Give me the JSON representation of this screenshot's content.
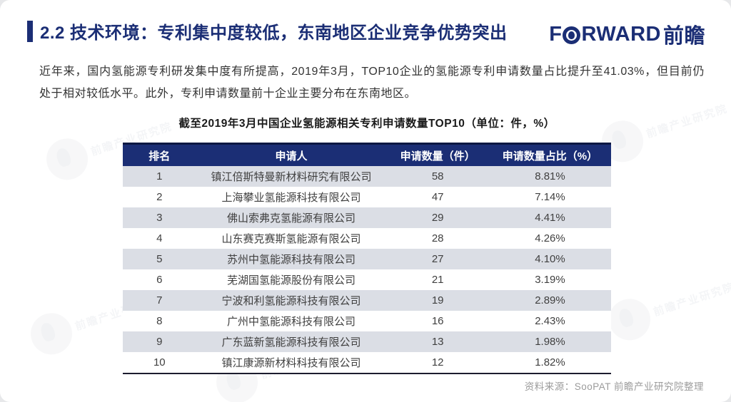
{
  "header": {
    "title": "2.2 技术环境：专利集中度较低，东南地区企业竞争优势突出"
  },
  "logo": {
    "part1": "F",
    "part2": "RWARD",
    "cjk": "前瞻"
  },
  "intro": "近年来，国内氢能源专利研发集中度有所提高，2019年3月，TOP10企业的氢能源专利申请数量占比提升至41.03%，但目前仍处于相对较低水平。此外，专利申请数量前十企业主要分布在东南地区。",
  "table": {
    "title": "截至2019年3月中国企业氢能源相关专利申请数量TOP10（单位：件，%）",
    "columns": [
      "排名",
      "申请人",
      "申请数量（件）",
      "申请数量占比（%）"
    ],
    "rows": [
      {
        "rank": "1",
        "applicant": "镇江倍斯特曼新材料研究有限公司",
        "count": "58",
        "share": "8.81%"
      },
      {
        "rank": "2",
        "applicant": "上海攀业氢能源科技有限公司",
        "count": "47",
        "share": "7.14%"
      },
      {
        "rank": "3",
        "applicant": "佛山索弗克氢能源有限公司",
        "count": "29",
        "share": "4.41%"
      },
      {
        "rank": "4",
        "applicant": "山东赛克赛斯氢能源有限公司",
        "count": "28",
        "share": "4.26%"
      },
      {
        "rank": "5",
        "applicant": "苏州中氢能源科技有限公司",
        "count": "27",
        "share": "4.10%"
      },
      {
        "rank": "6",
        "applicant": "芜湖国氢能源股份有限公司",
        "count": "21",
        "share": "3.19%"
      },
      {
        "rank": "7",
        "applicant": "宁波和利氢能源科技有限公司",
        "count": "19",
        "share": "2.89%"
      },
      {
        "rank": "8",
        "applicant": "广州中氢能源科技有限公司",
        "count": "16",
        "share": "2.43%"
      },
      {
        "rank": "9",
        "applicant": "广东蓝新氢能源科技有限公司",
        "count": "13",
        "share": "1.98%"
      },
      {
        "rank": "10",
        "applicant": "镇江康源新材料科技有限公司",
        "count": "12",
        "share": "1.82%"
      }
    ]
  },
  "footer": {
    "source": "资料来源：SooPAT 前瞻产业研究院整理"
  },
  "watermark": {
    "text": "前瞻产业研究院"
  },
  "colors": {
    "brand_navy": "#1b2e75",
    "header_top_border": "#0d1843",
    "row_stripe": "#dbdee5",
    "body_text": "#333333",
    "source_text": "#9b9b9b"
  }
}
